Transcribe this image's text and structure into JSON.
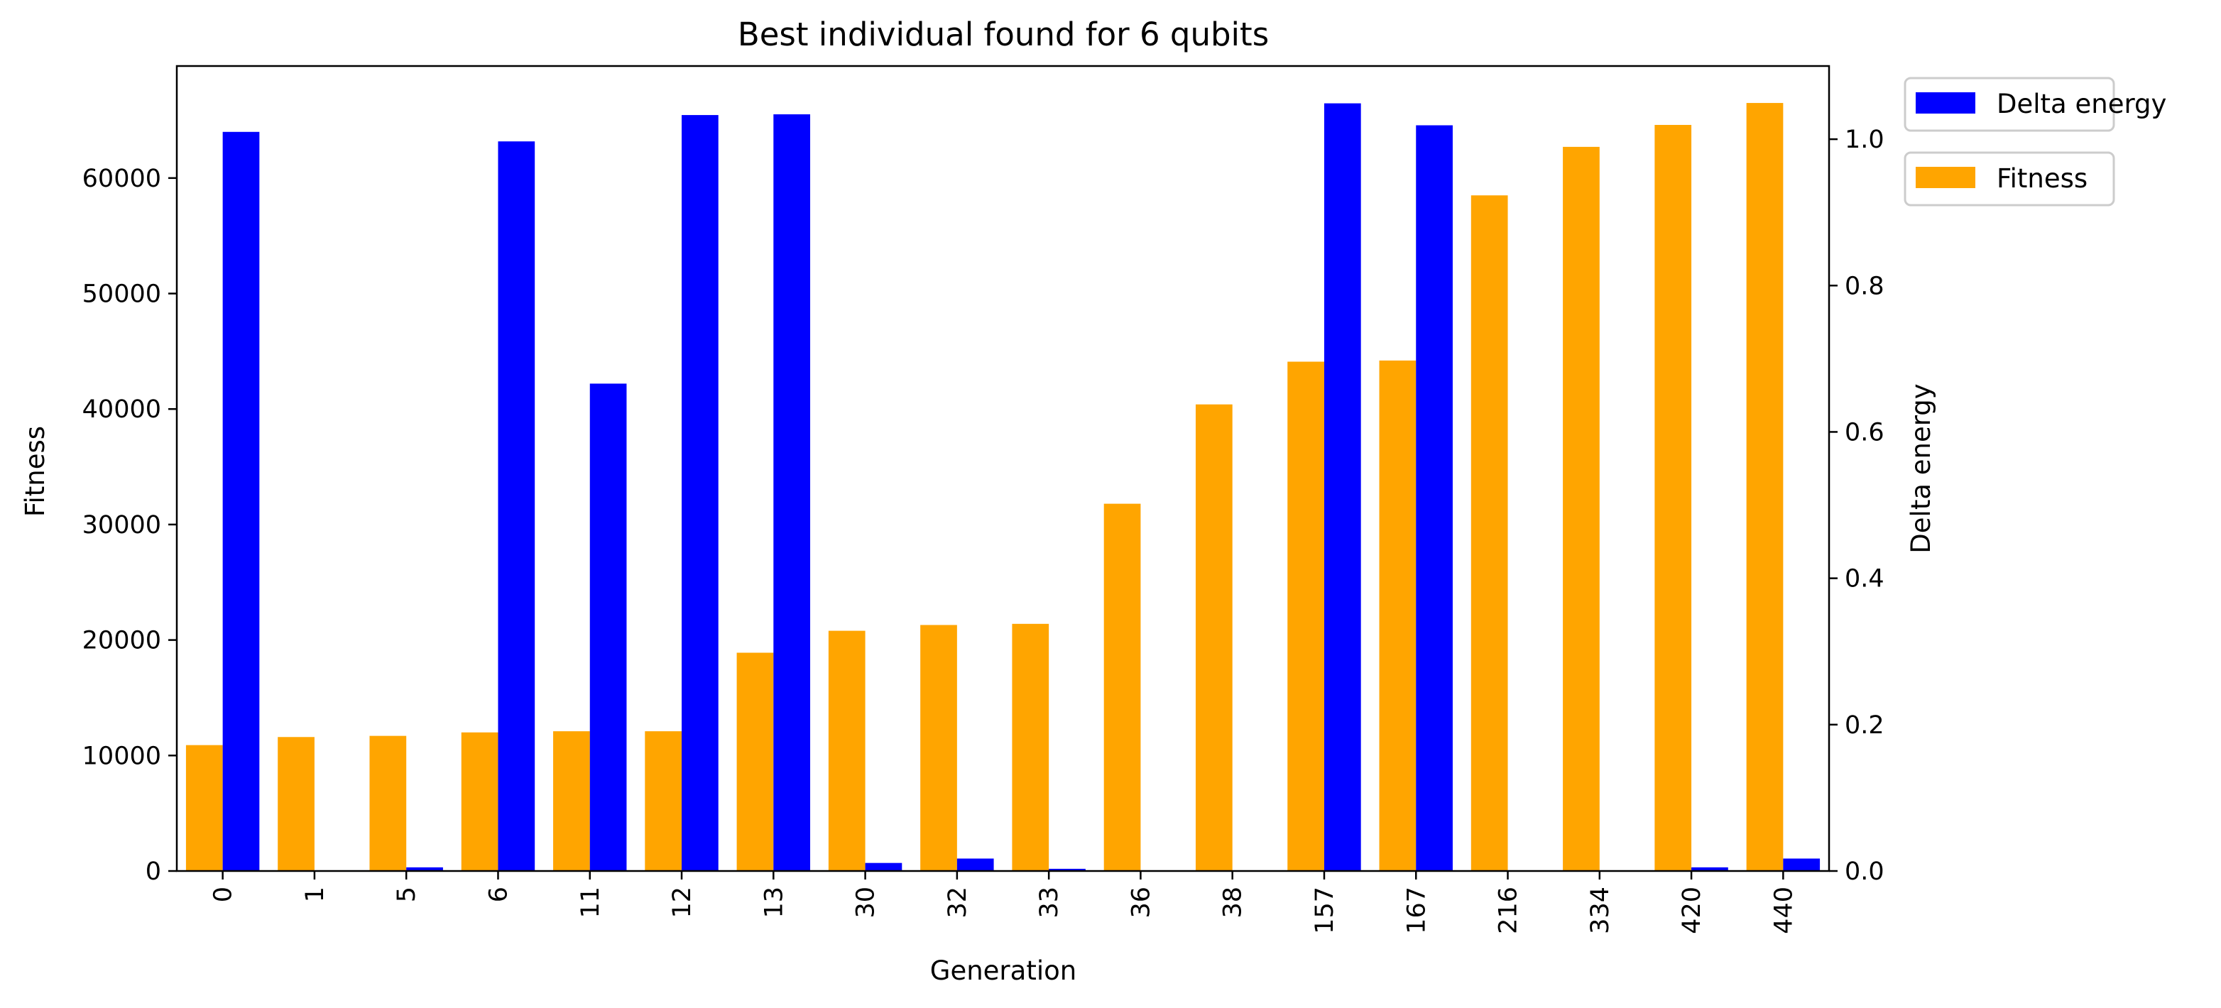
{
  "chart_data": {
    "type": "bar",
    "title": "Best individual found for 6 qubits",
    "xlabel": "Generation",
    "categories": [
      "0",
      "1",
      "5",
      "6",
      "11",
      "12",
      "13",
      "30",
      "32",
      "33",
      "36",
      "38",
      "157",
      "167",
      "216",
      "334",
      "420",
      "440"
    ],
    "left_axis": {
      "label": "Fitness",
      "ylim": [
        0,
        69700
      ],
      "ticks": [
        0,
        10000,
        20000,
        30000,
        40000,
        50000,
        60000
      ],
      "tick_labels": [
        "0",
        "10000",
        "20000",
        "30000",
        "40000",
        "50000",
        "60000"
      ]
    },
    "right_axis": {
      "label": "Delta energy",
      "ylim": [
        0,
        1.1
      ],
      "ticks": [
        0.0,
        0.2,
        0.4,
        0.6,
        0.8,
        1.0
      ],
      "tick_labels": [
        "0.0",
        "0.2",
        "0.4",
        "0.6",
        "0.8",
        "1.0"
      ]
    },
    "series": [
      {
        "name": "Fitness",
        "axis": "left",
        "color": "#ffa500",
        "values": [
          10900,
          11600,
          11700,
          12000,
          12100,
          12100,
          18900,
          20800,
          21300,
          21400,
          31800,
          40400,
          44100,
          44200,
          58500,
          62700,
          64600,
          66500
        ]
      },
      {
        "name": "Delta energy",
        "axis": "right",
        "color": "#0000ff",
        "values": [
          1.01,
          0.0,
          0.005,
          0.997,
          0.666,
          1.033,
          1.034,
          0.011,
          0.017,
          0.003,
          0.0,
          0.0,
          1.049,
          1.019,
          0.0,
          0.0,
          0.005,
          0.017
        ]
      }
    ],
    "legend": {
      "placement": "outside-top-right",
      "entries": [
        "Delta energy",
        "Fitness"
      ]
    },
    "grid": false
  }
}
